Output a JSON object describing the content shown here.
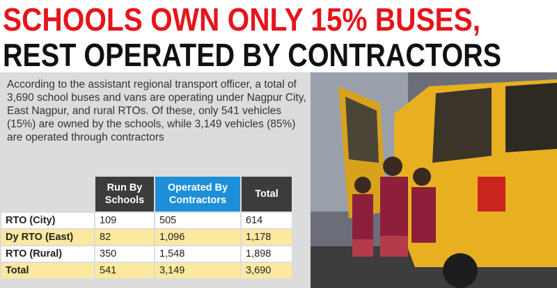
{
  "headline": {
    "line1": "SCHOOLS OWN ONLY 15% BUSES,",
    "line2": "REST OPERATED BY CONTRACTORS"
  },
  "intro": "According to the assistant regional transport officer, a total of 3,690 school buses and vans are operating under Nagpur City, East Nagpur, and rural RTOs. Of these, only 541 vehicles (15%) are owned by the schools, while 3,149 vehicles (85%) are operated through contractors",
  "table": {
    "columns": [
      "Run By Schools",
      "Operated By Contractors",
      "Total"
    ],
    "rows": [
      {
        "label": "RTO (City)",
        "cells": [
          "109",
          "505",
          "614"
        ]
      },
      {
        "label": "Dy RTO (East)",
        "cells": [
          "82",
          "1,096",
          "1,178"
        ]
      },
      {
        "label": "RTO (Rural)",
        "cells": [
          "350",
          "1,548",
          "1,898"
        ]
      },
      {
        "label": "Total",
        "cells": [
          "541",
          "3,149",
          "3,690"
        ]
      }
    ]
  }
}
